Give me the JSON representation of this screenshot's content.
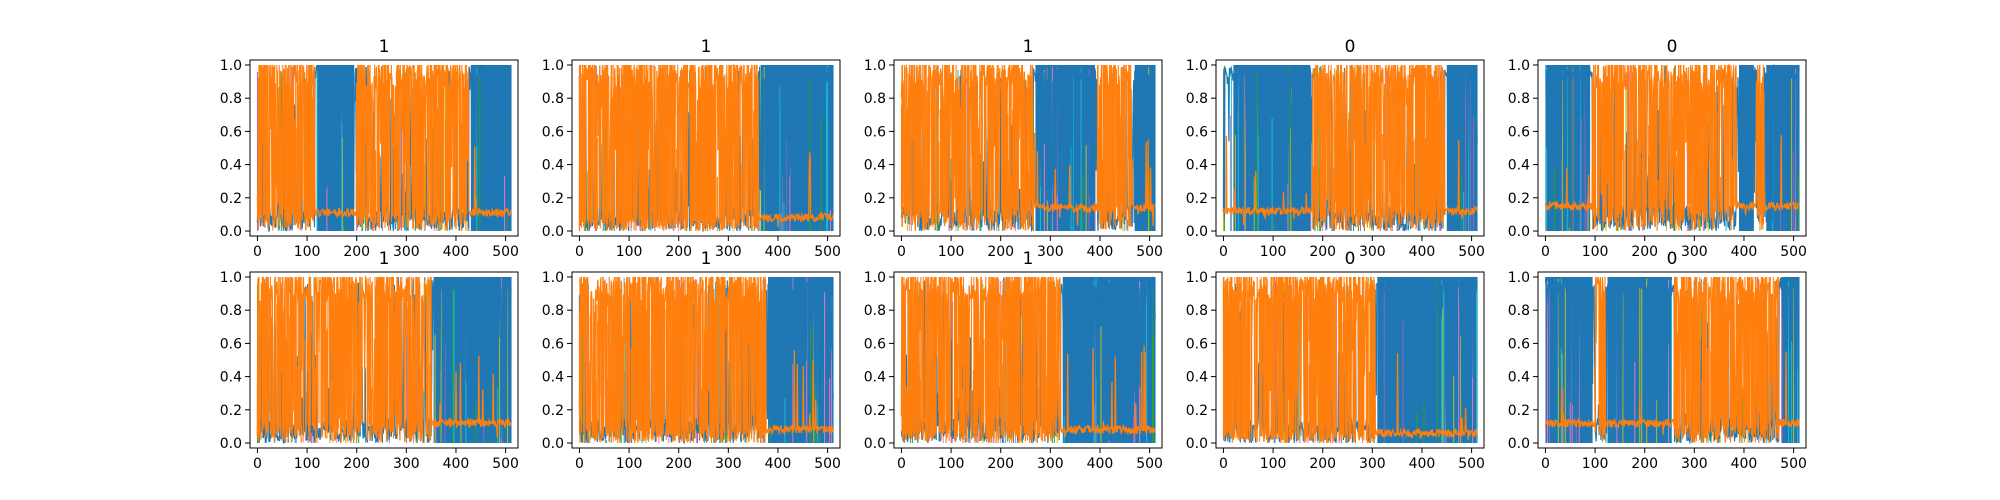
{
  "figure": {
    "colors": {
      "blue": "#1f77b4",
      "orange": "#ff7f0e",
      "cyan": "#17becf",
      "olive": "#bcbd22",
      "pink": "#e377c2",
      "green": "#2ca02c",
      "purple": "#9467bd"
    }
  },
  "chart_data": [
    {
      "type": "line",
      "title": "1",
      "x_ticks": [
        "0",
        "100",
        "200",
        "300",
        "400",
        "500"
      ],
      "y_ticks": [
        "0.0",
        "0.2",
        "0.4",
        "0.6",
        "0.8",
        "1.0"
      ],
      "xlim": [
        -15,
        525
      ],
      "ylim": [
        -0.03,
        1.03
      ],
      "series": [
        {
          "color": "#1f77b4",
          "dominant_ranges": [
            [
              120,
              195
            ],
            [
              430,
              512
            ]
          ]
        },
        {
          "color": "#ff7f0e",
          "dominant_ranges": [
            [
              0,
              115
            ],
            [
              200,
              425
            ]
          ],
          "baseline": 0.11
        }
      ]
    },
    {
      "type": "line",
      "title": "1",
      "x_ticks": [
        "0",
        "100",
        "200",
        "300",
        "400",
        "500"
      ],
      "y_ticks": [
        "0.0",
        "0.2",
        "0.4",
        "0.6",
        "0.8",
        "1.0"
      ],
      "xlim": [
        -15,
        525
      ],
      "ylim": [
        -0.03,
        1.03
      ],
      "series": [
        {
          "color": "#1f77b4",
          "dominant_ranges": [
            [
              365,
              512
            ]
          ]
        },
        {
          "color": "#ff7f0e",
          "dominant_ranges": [
            [
              0,
              360
            ]
          ],
          "baseline": 0.08
        }
      ]
    },
    {
      "type": "line",
      "title": "1",
      "x_ticks": [
        "0",
        "100",
        "200",
        "300",
        "400",
        "500"
      ],
      "y_ticks": [
        "0.0",
        "0.2",
        "0.4",
        "0.6",
        "0.8",
        "1.0"
      ],
      "xlim": [
        -15,
        525
      ],
      "ylim": [
        -0.03,
        1.03
      ],
      "series": [
        {
          "color": "#1f77b4",
          "dominant_ranges": [
            [
              270,
              390
            ],
            [
              470,
              512
            ]
          ]
        },
        {
          "color": "#ff7f0e",
          "dominant_ranges": [
            [
              0,
              265
            ],
            [
              395,
              465
            ]
          ],
          "baseline": 0.14
        }
      ]
    },
    {
      "type": "line",
      "title": "0",
      "x_ticks": [
        "0",
        "100",
        "200",
        "300",
        "400",
        "500"
      ],
      "y_ticks": [
        "0.0",
        "0.2",
        "0.4",
        "0.6",
        "0.8",
        "1.0"
      ],
      "xlim": [
        -15,
        525
      ],
      "ylim": [
        -0.03,
        1.03
      ],
      "series": [
        {
          "color": "#1f77b4",
          "dominant_ranges": [
            [
              20,
              175
            ],
            [
              450,
              512
            ]
          ]
        },
        {
          "color": "#ff7f0e",
          "dominant_ranges": [
            [
              180,
              445
            ]
          ],
          "baseline": 0.12
        }
      ]
    },
    {
      "type": "line",
      "title": "0",
      "x_ticks": [
        "0",
        "100",
        "200",
        "300",
        "400",
        "500"
      ],
      "y_ticks": [
        "0.0",
        "0.2",
        "0.4",
        "0.6",
        "0.8",
        "1.0"
      ],
      "xlim": [
        -15,
        525
      ],
      "ylim": [
        -0.03,
        1.03
      ],
      "series": [
        {
          "color": "#1f77b4",
          "dominant_ranges": [
            [
              0,
              90
            ],
            [
              390,
              420
            ],
            [
              445,
              512
            ]
          ]
        },
        {
          "color": "#ff7f0e",
          "dominant_ranges": [
            [
              95,
              385
            ],
            [
              425,
              440
            ]
          ],
          "baseline": 0.15
        }
      ]
    },
    {
      "type": "line",
      "title": "1",
      "x_ticks": [
        "0",
        "100",
        "200",
        "300",
        "400",
        "500"
      ],
      "y_ticks": [
        "0.0",
        "0.2",
        "0.4",
        "0.6",
        "0.8",
        "1.0"
      ],
      "xlim": [
        -15,
        525
      ],
      "ylim": [
        -0.03,
        1.03
      ],
      "series": [
        {
          "color": "#1f77b4",
          "dominant_ranges": [
            [
              355,
              512
            ]
          ]
        },
        {
          "color": "#ff7f0e",
          "dominant_ranges": [
            [
              0,
              350
            ]
          ],
          "baseline": 0.12
        }
      ]
    },
    {
      "type": "line",
      "title": "1",
      "x_ticks": [
        "0",
        "100",
        "200",
        "300",
        "400",
        "500"
      ],
      "y_ticks": [
        "0.0",
        "0.2",
        "0.4",
        "0.6",
        "0.8",
        "1.0"
      ],
      "xlim": [
        -15,
        525
      ],
      "ylim": [
        -0.03,
        1.03
      ],
      "series": [
        {
          "color": "#1f77b4",
          "dominant_ranges": [
            [
              380,
              512
            ]
          ]
        },
        {
          "color": "#ff7f0e",
          "dominant_ranges": [
            [
              0,
              375
            ]
          ],
          "baseline": 0.08
        }
      ]
    },
    {
      "type": "line",
      "title": "1",
      "x_ticks": [
        "0",
        "100",
        "200",
        "300",
        "400",
        "500"
      ],
      "y_ticks": [
        "0.0",
        "0.2",
        "0.4",
        "0.6",
        "0.8",
        "1.0"
      ],
      "xlim": [
        -15,
        525
      ],
      "ylim": [
        -0.03,
        1.03
      ],
      "series": [
        {
          "color": "#1f77b4",
          "dominant_ranges": [
            [
              325,
              512
            ]
          ]
        },
        {
          "color": "#ff7f0e",
          "dominant_ranges": [
            [
              0,
              320
            ]
          ],
          "baseline": 0.08
        }
      ]
    },
    {
      "type": "line",
      "title": "0",
      "x_ticks": [
        "0",
        "100",
        "200",
        "300",
        "400",
        "500"
      ],
      "y_ticks": [
        "0.0",
        "0.2",
        "0.4",
        "0.6",
        "0.8",
        "1.0"
      ],
      "xlim": [
        -15,
        525
      ],
      "ylim": [
        -0.03,
        1.03
      ],
      "series": [
        {
          "color": "#1f77b4",
          "dominant_ranges": [
            [
              310,
              512
            ]
          ]
        },
        {
          "color": "#ff7f0e",
          "dominant_ranges": [
            [
              0,
              305
            ]
          ],
          "baseline": 0.06
        }
      ]
    },
    {
      "type": "line",
      "title": "0",
      "x_ticks": [
        "0",
        "100",
        "200",
        "300",
        "400",
        "500"
      ],
      "y_ticks": [
        "0.0",
        "0.2",
        "0.4",
        "0.6",
        "0.8",
        "1.0"
      ],
      "xlim": [
        -15,
        525
      ],
      "ylim": [
        -0.03,
        1.03
      ],
      "series": [
        {
          "color": "#1f77b4",
          "dominant_ranges": [
            [
              0,
              95
            ],
            [
              125,
              255
            ],
            [
              475,
              512
            ]
          ]
        },
        {
          "color": "#ff7f0e",
          "dominant_ranges": [
            [
              100,
              120
            ],
            [
              260,
              470
            ]
          ],
          "baseline": 0.12
        }
      ]
    }
  ]
}
